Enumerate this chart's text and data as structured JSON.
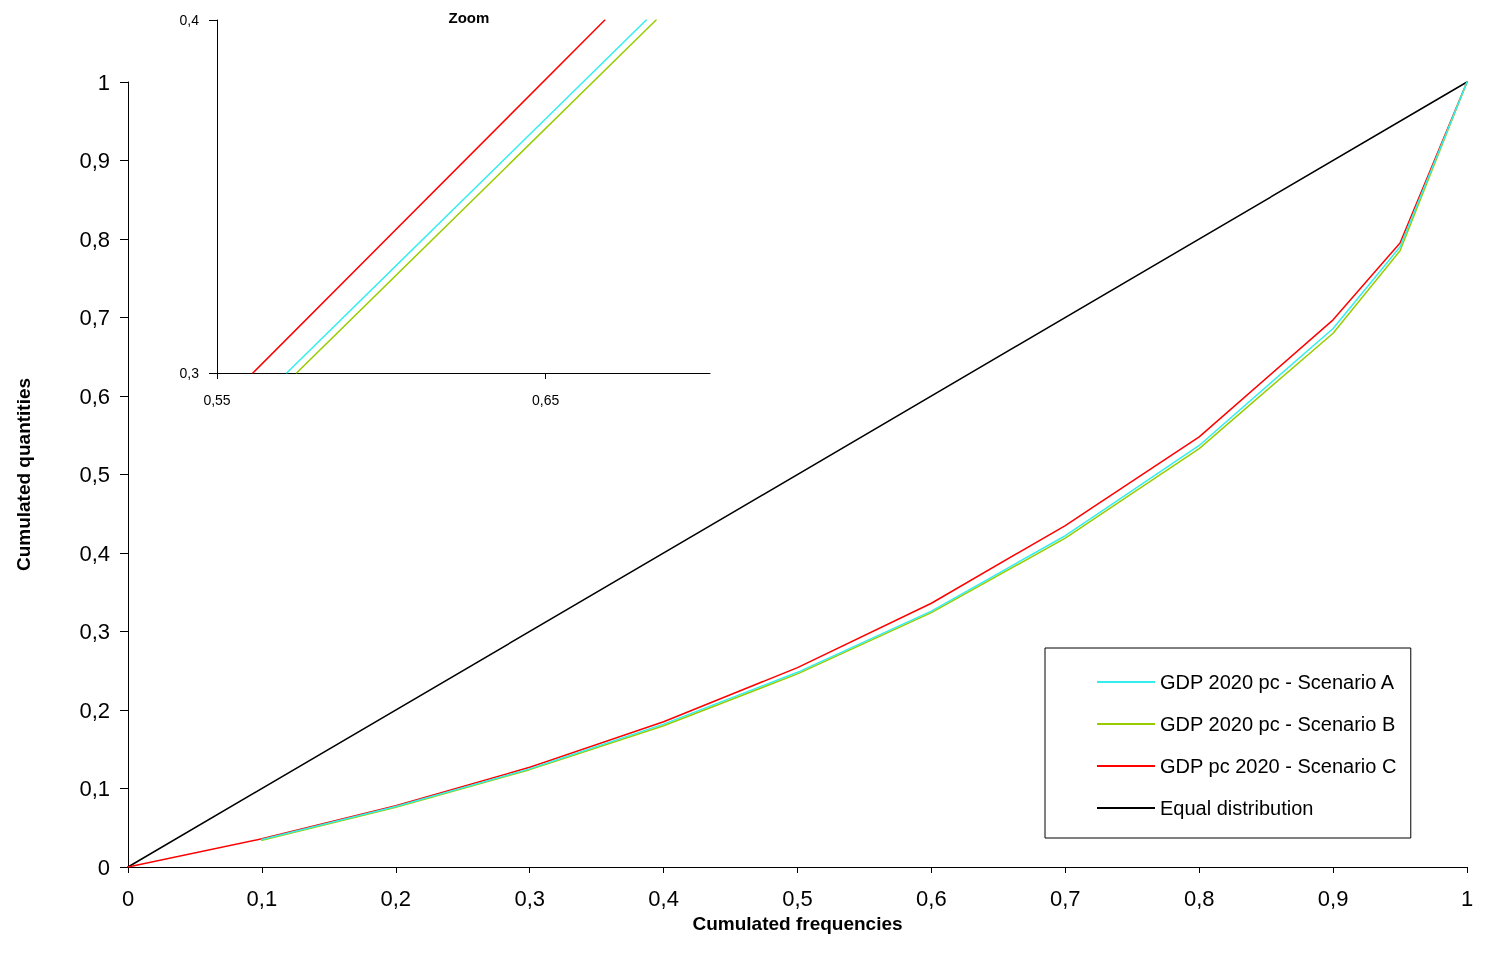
{
  "chart_data": [
    {
      "type": "line",
      "xlabel": "Cumulated frequencies",
      "ylabel": "Cumulated quantities",
      "x": [
        0,
        0.1,
        0.2,
        0.3,
        0.4,
        0.5,
        0.6,
        0.7,
        0.8,
        0.9,
        0.95,
        1
      ],
      "series": [
        {
          "name": "GDP 2020 pc - Scenario A",
          "color": "#33eeee",
          "values": [
            null,
            0.035,
            0.077,
            0.125,
            0.182,
            0.248,
            0.326,
            0.422,
            0.537,
            0.686,
            0.79,
            1
          ]
        },
        {
          "name": "GDP 2020 pc - Scenario B",
          "color": "#99cc00",
          "values": [
            null,
            0.034,
            0.076,
            0.124,
            0.18,
            0.246,
            0.324,
            0.419,
            0.533,
            0.68,
            0.785,
            1
          ]
        },
        {
          "name": "GDP pc 2020 - Scenario C",
          "color": "#ff0000",
          "values": [
            0,
            0.036,
            0.078,
            0.127,
            0.185,
            0.254,
            0.336,
            0.435,
            0.548,
            0.697,
            0.795,
            1
          ]
        },
        {
          "name": "Equal distribution",
          "color": "#000000",
          "x": [
            0,
            1
          ],
          "values": [
            0,
            1
          ]
        }
      ],
      "xlim": [
        0,
        1
      ],
      "ylim": [
        0,
        1
      ],
      "xticks": [
        0,
        {
          "value": 0.1,
          "label": "0,1"
        },
        {
          "value": 0.2,
          "label": "0,2"
        },
        {
          "value": 0.3,
          "label": "0,3"
        },
        {
          "value": 0.4,
          "label": "0,4"
        },
        {
          "value": 0.5,
          "label": "0,5"
        },
        {
          "value": 0.6,
          "label": "0,6"
        },
        {
          "value": 0.7,
          "label": "0,7"
        },
        {
          "value": 0.8,
          "label": "0,8"
        },
        {
          "value": 0.9,
          "label": "0,9"
        },
        1
      ],
      "yticks": [
        0,
        {
          "value": 0.1,
          "label": "0,1"
        },
        {
          "value": 0.2,
          "label": "0,2"
        },
        {
          "value": 0.3,
          "label": "0,3"
        },
        {
          "value": 0.4,
          "label": "0,4"
        },
        {
          "value": 0.5,
          "label": "0,5"
        },
        {
          "value": 0.6,
          "label": "0,6"
        },
        {
          "value": 0.7,
          "label": "0,7"
        },
        {
          "value": 0.8,
          "label": "0,8"
        },
        {
          "value": 0.9,
          "label": "0,9"
        },
        1
      ],
      "legend": "bottom right",
      "marker": "none",
      "line_style": "solid"
    },
    {
      "type": "line",
      "title": "Zoom",
      "series": [
        {
          "color": "#33eeee",
          "x": [
            0.5712,
            0.6806
          ],
          "values": [
            0.3,
            0.4
          ]
        },
        {
          "color": "#99cc00",
          "x": [
            0.5742,
            0.6836
          ],
          "values": [
            0.3,
            0.4
          ]
        },
        {
          "color": "#ff0000",
          "x": [
            0.5609,
            0.668
          ],
          "values": [
            0.3,
            0.4
          ]
        }
      ],
      "xlim": [
        0.55,
        0.7
      ],
      "ylim": [
        0.3,
        0.4
      ],
      "xticks": [
        {
          "value": 0.55,
          "label": "0,55"
        },
        {
          "value": 0.65,
          "label": "0,65"
        }
      ],
      "yticks": [
        {
          "value": 0.3,
          "label": "0,3"
        },
        {
          "value": 0.4,
          "label": "0,4"
        }
      ],
      "marker": "none",
      "line_style": "solid"
    }
  ]
}
